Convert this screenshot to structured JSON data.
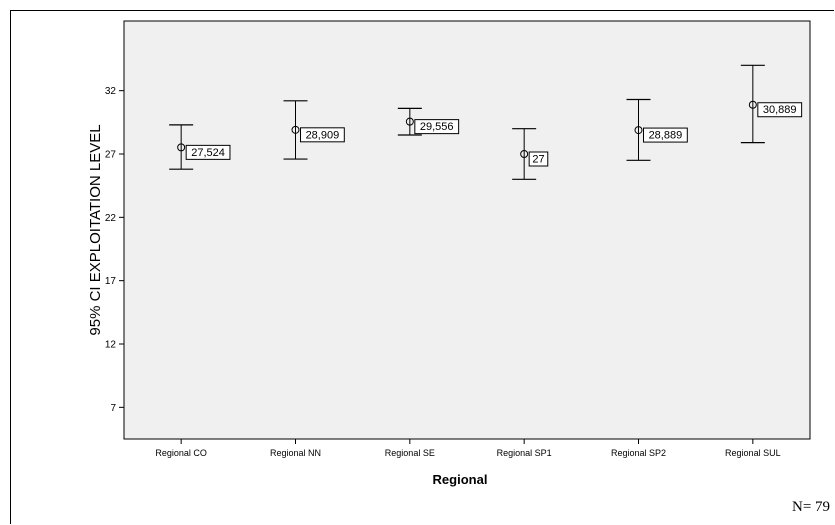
{
  "chart_data": {
    "type": "errorbar",
    "xlabel": "Regional",
    "ylabel": "95% CI EXPLOITATION LEVEL",
    "ylim": [
      4.5,
      37.5
    ],
    "yticks": [
      7,
      12,
      17,
      22,
      27,
      32
    ],
    "grid": false,
    "categories": [
      "Regional CO",
      "Regional NN",
      "Regional SE",
      "Regional SP1",
      "Regional SP2",
      "Regional SUL"
    ],
    "means": [
      27.524,
      28.909,
      29.556,
      27,
      28.889,
      30.889
    ],
    "lower": [
      25.8,
      26.6,
      28.5,
      25.0,
      26.5,
      27.9
    ],
    "upper": [
      29.3,
      31.2,
      30.6,
      29.0,
      31.3,
      34.0
    ],
    "data_labels": [
      "27,524",
      "28,909",
      "29,556",
      "27",
      "28,889",
      "30,889"
    ],
    "colors": {
      "plot_background": "#f0f0f0",
      "axis": "#000000",
      "marker": "#000000"
    }
  },
  "footnote": "N= 79"
}
